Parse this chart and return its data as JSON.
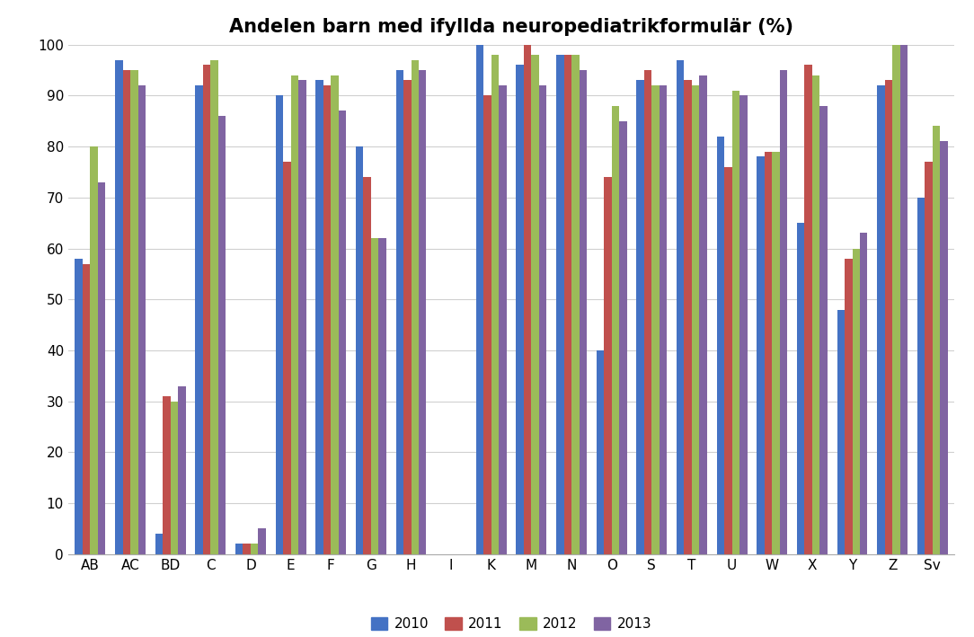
{
  "title": "Andelen barn med ifyllda neuropediatrikformulär (%)",
  "categories": [
    "AB",
    "AC",
    "BD",
    "C",
    "D",
    "E",
    "F",
    "G",
    "H",
    "I",
    "K",
    "M",
    "N",
    "O",
    "S",
    "T",
    "U",
    "W",
    "X",
    "Y",
    "Z",
    "Sv"
  ],
  "series": {
    "2010": [
      58,
      97,
      4,
      92,
      2,
      90,
      93,
      80,
      95,
      0,
      100,
      96,
      98,
      40,
      93,
      97,
      82,
      78,
      65,
      48,
      92,
      70
    ],
    "2011": [
      57,
      95,
      31,
      96,
      2,
      77,
      92,
      74,
      93,
      0,
      90,
      100,
      98,
      74,
      95,
      93,
      76,
      79,
      96,
      58,
      93,
      77
    ],
    "2012": [
      80,
      95,
      30,
      97,
      2,
      94,
      94,
      62,
      97,
      0,
      98,
      98,
      98,
      88,
      92,
      92,
      91,
      79,
      94,
      60,
      100,
      84
    ],
    "2013": [
      73,
      92,
      33,
      86,
      5,
      93,
      87,
      62,
      95,
      0,
      92,
      92,
      95,
      85,
      92,
      94,
      90,
      95,
      88,
      63,
      100,
      81
    ]
  },
  "colors": {
    "2010": "#4472C4",
    "2011": "#C0504D",
    "2012": "#9BBB59",
    "2013": "#8064A2"
  },
  "ylim": [
    0,
    100
  ],
  "yticks": [
    0,
    10,
    20,
    30,
    40,
    50,
    60,
    70,
    80,
    90,
    100
  ],
  "legend_labels": [
    "2010",
    "2011",
    "2012",
    "2013"
  ],
  "background_color": "#ffffff",
  "grid_color": "#d0d0d0",
  "bar_width": 0.19,
  "figsize": [
    10.84,
    7.09
  ],
  "dpi": 100,
  "title_fontsize": 15,
  "tick_fontsize": 11,
  "legend_fontsize": 11
}
